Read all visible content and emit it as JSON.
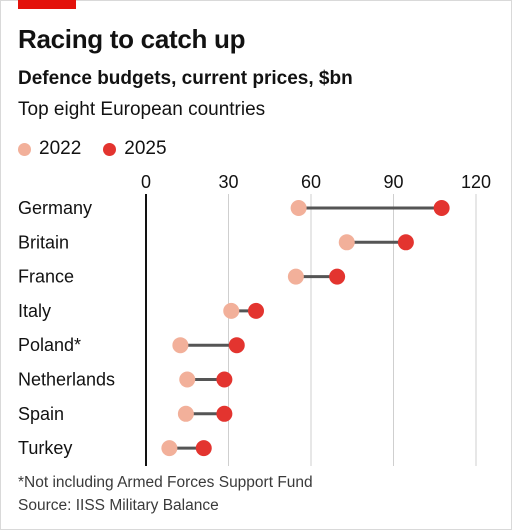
{
  "header": {
    "title": "Racing to catch up",
    "subtitle": "Defence budgets, current prices, $bn",
    "subtitle2": "Top eight European countries"
  },
  "legend": [
    {
      "label": "2022",
      "color": "#f2b09a"
    },
    {
      "label": "2025",
      "color": "#e3342f"
    }
  ],
  "colors": {
    "c2022": "#f2b09a",
    "c2025": "#e3342f",
    "connector": "#555555",
    "grid": "#cfcfcf",
    "axis": "#121212",
    "brand": "#e3120b"
  },
  "chart_data": {
    "type": "dumbbell",
    "title": "Racing to catch up",
    "subtitle": "Defence budgets, current prices, $bn",
    "xlim": [
      0,
      120
    ],
    "xticks": [
      "0",
      "30",
      "60",
      "90",
      "120"
    ],
    "categories": [
      "Germany",
      "Britain",
      "France",
      "Italy",
      "Poland*",
      "Netherlands",
      "Spain",
      "Turkey"
    ],
    "series": [
      {
        "name": "2022",
        "values": [
          55.5,
          73,
          54.5,
          31,
          12.5,
          15,
          14.5,
          8.5
        ]
      },
      {
        "name": "2025",
        "values": [
          107.5,
          94.5,
          69.5,
          40,
          33,
          28.5,
          28.5,
          21
        ]
      }
    ]
  },
  "footer": {
    "note": "*Not including Armed Forces Support Fund",
    "source": "Source: IISS Military Balance"
  }
}
